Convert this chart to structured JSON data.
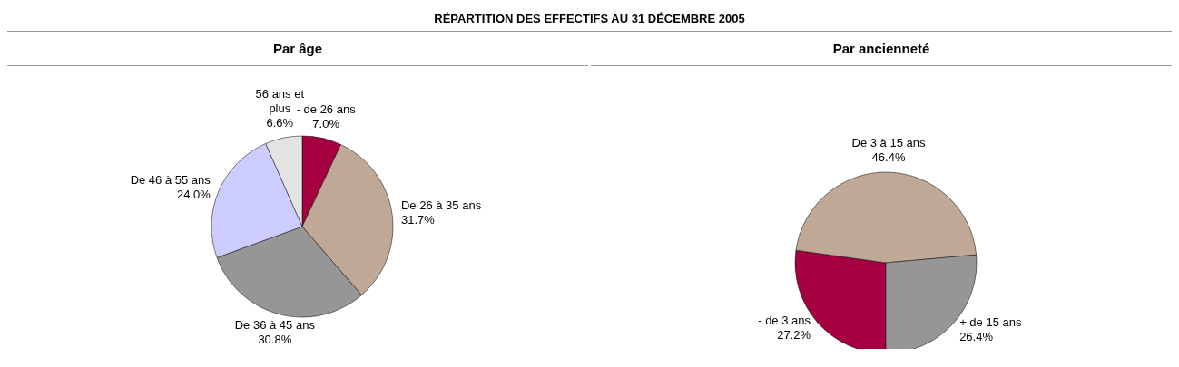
{
  "chart_data": [
    {
      "type": "pie",
      "title": "RÉPARTITION DES EFFECTIFS AU 31 DÉCEMBRE 2005",
      "subtitle": "Par âge",
      "categories": [
        "- de 26 ans",
        "De 26 à 35 ans",
        "De 36 à 45 ans",
        "De 46 à 55 ans",
        "56 ans et plus"
      ],
      "values": [
        7.0,
        31.7,
        30.8,
        24.0,
        6.6
      ],
      "value_labels": [
        "7.0%",
        "31.7%",
        "30.8%",
        "24.0%",
        "6.6%"
      ],
      "colors": [
        "#a50040",
        "#bfa996",
        "#969696",
        "#ccccff",
        "#e3e3e3"
      ]
    },
    {
      "type": "pie",
      "subtitle": "Par ancienneté",
      "categories": [
        "- de 3 ans",
        "De 3 à 15 ans",
        "+ de 15 ans"
      ],
      "values": [
        27.2,
        46.4,
        26.4
      ],
      "value_labels": [
        "27.2%",
        "46.4%",
        "26.4%"
      ],
      "colors": [
        "#a50040",
        "#bfa996",
        "#969696"
      ]
    }
  ]
}
